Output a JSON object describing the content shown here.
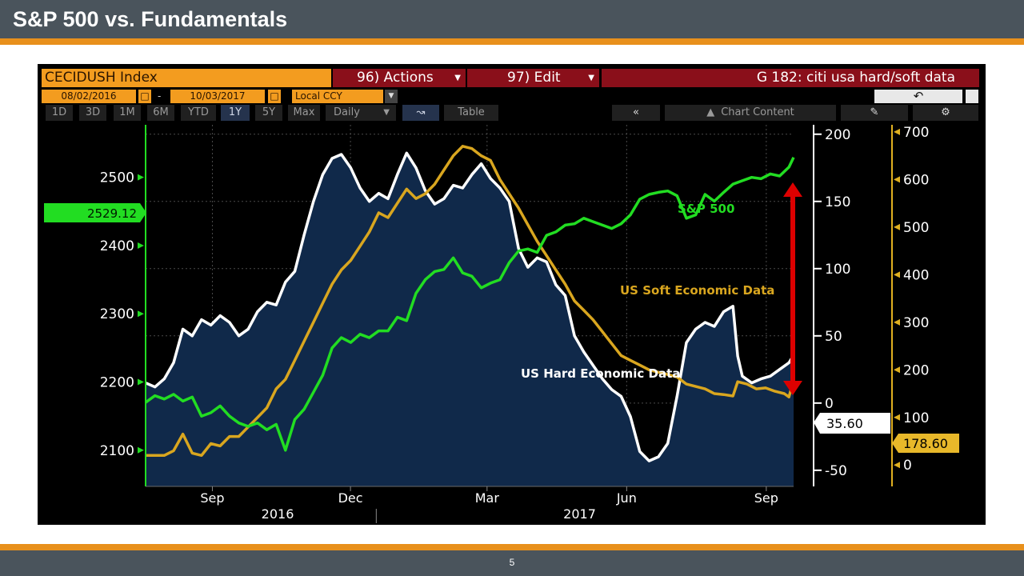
{
  "slide": {
    "title": "S&P 500 vs. Fundamentals",
    "page_number": "5"
  },
  "toolbar": {
    "ticker": "CECIDUSH Index",
    "actions": "96) Actions",
    "edit": "97) Edit",
    "chart_title": "G 182: citi usa hard/soft data",
    "start_date": "08/02/2016",
    "dash": "-",
    "end_date": "10/03/2017",
    "currency": "Local CCY",
    "periods": [
      "1D",
      "3D",
      "1M",
      "6M",
      "YTD",
      "1Y",
      "5Y",
      "Max"
    ],
    "selected_period": "1Y",
    "frequency": "Daily",
    "table": "Table",
    "back": "«",
    "chart_content": "Chart Content",
    "undo_icon": "undo-arrow-icon",
    "edit_icon": "pencil-icon",
    "settings_icon": "gear-icon",
    "calendar_icon": "calendar-icon",
    "dropdown_icon": "caret-down-icon",
    "line_chart_icon": "line-chart-icon"
  },
  "chart_data": {
    "type": "line",
    "background": "#000000",
    "x": {
      "range": [
        "2016-08-02",
        "2017-10-03"
      ],
      "month_ticks": [
        "Sep",
        "Dec",
        "Mar",
        "Jun",
        "Sep"
      ],
      "year_labels": [
        "2016",
        "2017"
      ]
    },
    "axes": {
      "left": {
        "ticks": [
          2100,
          2200,
          2300,
          2400,
          2500
        ],
        "range": [
          2047,
          2577
        ],
        "color": "#22dd22",
        "current_value": "2529.12"
      },
      "right_inner": {
        "ticks": [
          -50,
          0,
          50,
          100,
          150,
          200
        ],
        "range": [
          -62,
          207
        ],
        "color": "#ffffff",
        "current_value": "35.60"
      },
      "right_outer": {
        "ticks": [
          0,
          100,
          200,
          300,
          400,
          500,
          600,
          700
        ],
        "range": [
          -45,
          715
        ],
        "color": "#e0b020",
        "current_value": "178.60"
      }
    },
    "series": [
      {
        "name": "US Hard Economic Data",
        "axis": "right_inner",
        "color": "#ffffff",
        "area_fill": "#10294a",
        "points": [
          [
            0,
            15
          ],
          [
            4,
            12
          ],
          [
            8,
            18
          ],
          [
            12,
            30
          ],
          [
            16,
            55
          ],
          [
            20,
            50
          ],
          [
            24,
            62
          ],
          [
            28,
            58
          ],
          [
            32,
            65
          ],
          [
            36,
            60
          ],
          [
            40,
            50
          ],
          [
            44,
            55
          ],
          [
            48,
            68
          ],
          [
            52,
            75
          ],
          [
            56,
            73
          ],
          [
            60,
            90
          ],
          [
            64,
            98
          ],
          [
            68,
            125
          ],
          [
            72,
            150
          ],
          [
            76,
            170
          ],
          [
            80,
            182
          ],
          [
            84,
            185
          ],
          [
            88,
            175
          ],
          [
            92,
            160
          ],
          [
            96,
            150
          ],
          [
            100,
            156
          ],
          [
            104,
            152
          ],
          [
            108,
            170
          ],
          [
            112,
            186
          ],
          [
            116,
            175
          ],
          [
            120,
            158
          ],
          [
            124,
            148
          ],
          [
            128,
            152
          ],
          [
            132,
            162
          ],
          [
            136,
            160
          ],
          [
            140,
            170
          ],
          [
            144,
            178
          ],
          [
            148,
            167
          ],
          [
            152,
            160
          ],
          [
            156,
            150
          ],
          [
            160,
            115
          ],
          [
            164,
            101
          ],
          [
            168,
            108
          ],
          [
            172,
            105
          ],
          [
            176,
            88
          ],
          [
            180,
            80
          ],
          [
            184,
            50
          ],
          [
            188,
            38
          ],
          [
            192,
            28
          ],
          [
            196,
            18
          ],
          [
            200,
            10
          ],
          [
            204,
            5
          ],
          [
            208,
            -10
          ],
          [
            212,
            -36
          ],
          [
            216,
            -43
          ],
          [
            220,
            -40
          ],
          [
            224,
            -30
          ],
          [
            228,
            5
          ],
          [
            232,
            45
          ],
          [
            236,
            55
          ],
          [
            240,
            60
          ],
          [
            244,
            57
          ],
          [
            248,
            68
          ],
          [
            252,
            72
          ],
          [
            254,
            35
          ],
          [
            256,
            20
          ],
          [
            260,
            15
          ],
          [
            264,
            18
          ],
          [
            268,
            20
          ],
          [
            272,
            25
          ],
          [
            276,
            30
          ],
          [
            278,
            35.6
          ]
        ]
      },
      {
        "name": "US Soft Economic Data",
        "axis": "right_outer",
        "color": "#d9a61f",
        "points": [
          [
            0,
            20
          ],
          [
            8,
            20
          ],
          [
            12,
            30
          ],
          [
            16,
            65
          ],
          [
            20,
            25
          ],
          [
            24,
            20
          ],
          [
            28,
            45
          ],
          [
            32,
            40
          ],
          [
            36,
            60
          ],
          [
            40,
            60
          ],
          [
            44,
            80
          ],
          [
            48,
            100
          ],
          [
            52,
            120
          ],
          [
            56,
            160
          ],
          [
            60,
            180
          ],
          [
            64,
            220
          ],
          [
            68,
            260
          ],
          [
            72,
            300
          ],
          [
            76,
            340
          ],
          [
            80,
            380
          ],
          [
            84,
            410
          ],
          [
            88,
            430
          ],
          [
            92,
            460
          ],
          [
            96,
            490
          ],
          [
            100,
            530
          ],
          [
            104,
            520
          ],
          [
            108,
            550
          ],
          [
            112,
            580
          ],
          [
            116,
            560
          ],
          [
            120,
            570
          ],
          [
            124,
            590
          ],
          [
            128,
            620
          ],
          [
            132,
            650
          ],
          [
            136,
            670
          ],
          [
            140,
            665
          ],
          [
            144,
            650
          ],
          [
            148,
            640
          ],
          [
            152,
            600
          ],
          [
            156,
            570
          ],
          [
            160,
            540
          ],
          [
            164,
            505
          ],
          [
            168,
            470
          ],
          [
            172,
            440
          ],
          [
            176,
            410
          ],
          [
            180,
            380
          ],
          [
            184,
            345
          ],
          [
            188,
            325
          ],
          [
            192,
            305
          ],
          [
            196,
            280
          ],
          [
            200,
            255
          ],
          [
            204,
            230
          ],
          [
            208,
            220
          ],
          [
            212,
            210
          ],
          [
            216,
            200
          ],
          [
            220,
            195
          ],
          [
            224,
            190
          ],
          [
            228,
            185
          ],
          [
            232,
            170
          ],
          [
            236,
            165
          ],
          [
            240,
            160
          ],
          [
            244,
            150
          ],
          [
            248,
            148
          ],
          [
            252,
            145
          ],
          [
            254,
            175
          ],
          [
            258,
            170
          ],
          [
            262,
            160
          ],
          [
            266,
            162
          ],
          [
            270,
            155
          ],
          [
            274,
            150
          ],
          [
            276,
            143
          ],
          [
            278,
            178.6
          ]
        ]
      },
      {
        "name": "S&P 500",
        "axis": "left",
        "color": "#22dd22",
        "points": [
          [
            0,
            2170
          ],
          [
            4,
            2180
          ],
          [
            8,
            2175
          ],
          [
            12,
            2182
          ],
          [
            16,
            2172
          ],
          [
            20,
            2178
          ],
          [
            24,
            2150
          ],
          [
            28,
            2155
          ],
          [
            32,
            2165
          ],
          [
            36,
            2150
          ],
          [
            40,
            2140
          ],
          [
            44,
            2135
          ],
          [
            48,
            2140
          ],
          [
            52,
            2130
          ],
          [
            56,
            2138
          ],
          [
            60,
            2100
          ],
          [
            64,
            2145
          ],
          [
            68,
            2160
          ],
          [
            72,
            2185
          ],
          [
            76,
            2210
          ],
          [
            80,
            2250
          ],
          [
            84,
            2265
          ],
          [
            88,
            2258
          ],
          [
            92,
            2270
          ],
          [
            96,
            2265
          ],
          [
            100,
            2275
          ],
          [
            104,
            2275
          ],
          [
            108,
            2295
          ],
          [
            112,
            2290
          ],
          [
            116,
            2330
          ],
          [
            120,
            2350
          ],
          [
            124,
            2362
          ],
          [
            128,
            2365
          ],
          [
            132,
            2382
          ],
          [
            136,
            2360
          ],
          [
            140,
            2355
          ],
          [
            144,
            2338
          ],
          [
            148,
            2345
          ],
          [
            152,
            2350
          ],
          [
            156,
            2375
          ],
          [
            160,
            2392
          ],
          [
            164,
            2395
          ],
          [
            168,
            2390
          ],
          [
            172,
            2415
          ],
          [
            176,
            2420
          ],
          [
            180,
            2430
          ],
          [
            184,
            2432
          ],
          [
            188,
            2440
          ],
          [
            192,
            2435
          ],
          [
            196,
            2430
          ],
          [
            200,
            2425
          ],
          [
            204,
            2432
          ],
          [
            208,
            2445
          ],
          [
            212,
            2468
          ],
          [
            216,
            2475
          ],
          [
            220,
            2478
          ],
          [
            224,
            2480
          ],
          [
            228,
            2473
          ],
          [
            232,
            2440
          ],
          [
            236,
            2445
          ],
          [
            240,
            2475
          ],
          [
            244,
            2465
          ],
          [
            248,
            2478
          ],
          [
            252,
            2490
          ],
          [
            256,
            2495
          ],
          [
            260,
            2500
          ],
          [
            264,
            2498
          ],
          [
            268,
            2505
          ],
          [
            272,
            2502
          ],
          [
            276,
            2515
          ],
          [
            278,
            2529.12
          ]
        ]
      }
    ],
    "annotations": {
      "sp500_label": "S&P 500",
      "soft_label": "US Soft Economic Data",
      "hard_label": "US Hard Economic Data",
      "arrow": "red double-headed vertical arrow between S&P 500 and hard data at Sep 2017",
      "arrow_color": "#dd0000"
    },
    "grid": "horizontal and vertical dashed gray"
  }
}
